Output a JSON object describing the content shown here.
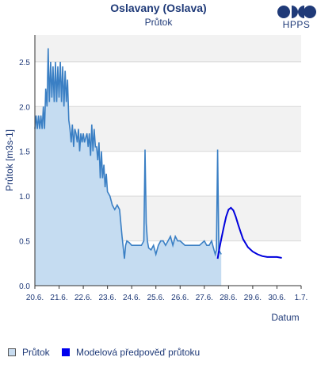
{
  "header": {
    "title": "Oslavany (Oslava)",
    "subtitle": "Průtok",
    "logo_text": "HPPS"
  },
  "legend": {
    "observed": "Průtok",
    "model": "Modelová předpověď průtoku"
  },
  "colors": {
    "observed_line": "#3a7fc4",
    "observed_fill": "#c5dcf1",
    "model_line": "#0000dd",
    "band": "#f2f2f2",
    "axis_text": "#1f3a78"
  },
  "chart_data": {
    "type": "area",
    "xlabel": "Datum",
    "ylabel": "Průtok [m3s-1]",
    "xlim": [
      0,
      11
    ],
    "ylim": [
      0,
      2.8
    ],
    "x_ticks": [
      0,
      1,
      2,
      3,
      4,
      5,
      6,
      7,
      8,
      9,
      10,
      11
    ],
    "x_tick_labels": [
      "20.6.",
      "21.6.",
      "22.6.",
      "23.6.",
      "24.6.",
      "25.6.",
      "26.6.",
      "27.6.",
      "28.6.",
      "29.6.",
      "30.6.",
      "1.7."
    ],
    "y_ticks": [
      0,
      0.5,
      1.0,
      1.5,
      2.0,
      2.5
    ],
    "y_tick_labels": [
      "0.0",
      "0.5",
      "1.0",
      "1.5",
      "2.0",
      "2.5"
    ],
    "series": [
      {
        "name": "Průtok",
        "x": [
          0,
          0.05,
          0.1,
          0.15,
          0.2,
          0.25,
          0.3,
          0.35,
          0.4,
          0.45,
          0.5,
          0.55,
          0.6,
          0.65,
          0.7,
          0.75,
          0.8,
          0.85,
          0.9,
          0.95,
          1.0,
          1.05,
          1.1,
          1.15,
          1.2,
          1.25,
          1.3,
          1.35,
          1.4,
          1.45,
          1.5,
          1.55,
          1.6,
          1.65,
          1.7,
          1.75,
          1.8,
          1.85,
          1.9,
          1.95,
          2.0,
          2.05,
          2.1,
          2.15,
          2.2,
          2.25,
          2.3,
          2.35,
          2.4,
          2.45,
          2.5,
          2.55,
          2.6,
          2.65,
          2.7,
          2.75,
          2.8,
          2.85,
          2.9,
          2.95,
          3.0,
          3.1,
          3.2,
          3.3,
          3.4,
          3.5,
          3.6,
          3.7,
          3.75,
          3.8,
          3.9,
          4.0,
          4.1,
          4.2,
          4.3,
          4.4,
          4.5,
          4.55,
          4.6,
          4.65,
          4.7,
          4.8,
          4.9,
          5.0,
          5.1,
          5.2,
          5.3,
          5.4,
          5.5,
          5.6,
          5.7,
          5.8,
          5.9,
          6.0,
          6.2,
          6.4,
          6.6,
          6.8,
          7.0,
          7.1,
          7.2,
          7.3,
          7.4,
          7.45,
          7.5,
          7.55,
          7.6,
          7.7
        ],
        "y": [
          1.75,
          1.9,
          1.75,
          1.9,
          1.75,
          1.9,
          1.75,
          2.0,
          1.75,
          2.2,
          2.0,
          2.65,
          2.05,
          2.5,
          2.1,
          2.45,
          2.05,
          2.5,
          2.05,
          2.45,
          2.1,
          2.5,
          2.05,
          2.45,
          2.0,
          2.4,
          2.05,
          2.3,
          1.85,
          1.75,
          1.6,
          1.8,
          1.55,
          1.75,
          1.7,
          1.6,
          1.75,
          1.5,
          1.7,
          1.6,
          1.7,
          1.6,
          1.65,
          1.7,
          1.55,
          1.7,
          1.45,
          1.8,
          1.5,
          1.75,
          1.55,
          1.55,
          1.4,
          1.6,
          1.2,
          1.5,
          1.2,
          1.35,
          1.1,
          1.25,
          1.05,
          1.0,
          0.9,
          0.85,
          0.9,
          0.85,
          0.55,
          0.3,
          0.45,
          0.5,
          0.48,
          0.45,
          0.45,
          0.45,
          0.45,
          0.45,
          0.5,
          1.52,
          0.7,
          0.5,
          0.42,
          0.4,
          0.45,
          0.35,
          0.45,
          0.5,
          0.5,
          0.45,
          0.5,
          0.55,
          0.45,
          0.55,
          0.5,
          0.5,
          0.45,
          0.45,
          0.45,
          0.45,
          0.5,
          0.45,
          0.45,
          0.5,
          0.4,
          0.35,
          0.4,
          1.52,
          0.4,
          0.35
        ]
      },
      {
        "name": "Modelová předpověď průtoku",
        "x": [
          7.55,
          7.6,
          7.7,
          7.8,
          7.9,
          8.0,
          8.1,
          8.2,
          8.3,
          8.4,
          8.5,
          8.6,
          8.8,
          9.0,
          9.2,
          9.4,
          9.6,
          9.8,
          10.0,
          10.2
        ],
        "y": [
          0.3,
          0.38,
          0.52,
          0.65,
          0.77,
          0.85,
          0.87,
          0.84,
          0.77,
          0.68,
          0.6,
          0.52,
          0.43,
          0.38,
          0.35,
          0.33,
          0.32,
          0.32,
          0.32,
          0.31
        ]
      }
    ],
    "grid": true,
    "legend_position": "bottom-left"
  }
}
